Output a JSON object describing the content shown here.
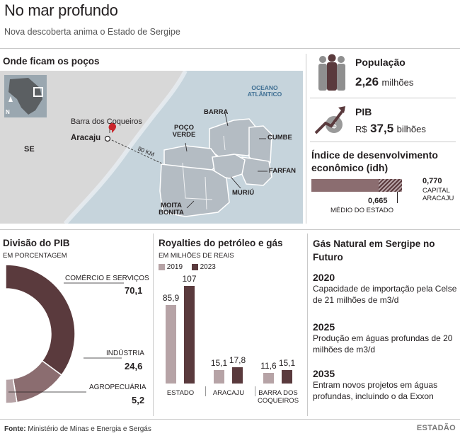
{
  "header": {
    "title": "No mar profundo",
    "subtitle": "Nova descoberta anima o Estado de Sergipe"
  },
  "map": {
    "section_title": "Onde ficam os poços",
    "ocean_label": "OCEANO ATLÂNTICO",
    "state_label": "SE",
    "city_primary": "Aracaju",
    "city_secondary": "Barra dos Coqueiros",
    "distance_label": "80 KM",
    "compass_label": "N",
    "wells": [
      "BARRA",
      "CUMBE",
      "POÇO VERDE",
      "FARFAN",
      "MURIÚ",
      "MOITA BONITA"
    ]
  },
  "population": {
    "label": "População",
    "value": "2,26",
    "unit": "milhões"
  },
  "gdp": {
    "label": "PIB",
    "prefix": "R$",
    "value": "37,5",
    "unit": "bilhões"
  },
  "idh": {
    "title": "Índice de desenvolvimento econômico (idh)",
    "state_value": "0,665",
    "state_label": "MÉDIO DO ESTADO",
    "capital_value": "0,770",
    "capital_label": "CAPITAL ARACAJU",
    "state_num": 0.665,
    "capital_num": 0.77
  },
  "pib_division": {
    "title": "Divisão do PIB",
    "unit_label": "EM PORCENTAGEM"
  },
  "royalties": {
    "title": "Royalties do petróleo e gás",
    "unit_label": "EM MILHÕES DE REAIS"
  },
  "future": {
    "title": "Gás Natural em Sergipe no Futuro",
    "items": [
      {
        "year": "2020",
        "text": "Capacidade de importação pela Celse de 21 milhões de m3/d"
      },
      {
        "year": "2025",
        "text": "Produção em águas profundas de 20 milhões de m3/d"
      },
      {
        "year": "2035",
        "text": "Entram novos projetos em águas profundas, incluindo o da Exxon"
      }
    ]
  },
  "footer": {
    "source_label": "Fonte:",
    "source_text": "Ministério de Minas e Energia e Sergás",
    "brand": "ESTADÃO"
  },
  "colors": {
    "dark": "#5a3a3d",
    "mid": "#8b6d70",
    "light": "#b6a3a6",
    "map_land": "#d8d8d8",
    "map_sea": "#c6d4dc",
    "well_fill": "#b4bcc3",
    "red_pin": "#c9262c"
  },
  "chart_data": [
    {
      "type": "pie",
      "title": "Divisão do PIB",
      "subtitle": "EM PORCENTAGEM",
      "categories": [
        "COMÉRCIO E SERVIÇOS",
        "INDÚSTRIA",
        "AGROPECUÁRIA"
      ],
      "values": [
        70.1,
        24.6,
        5.2
      ],
      "value_labels": [
        "70,1",
        "24,6",
        "5,2"
      ],
      "colors": [
        "#5a3a3d",
        "#8b6d70",
        "#b6a3a6"
      ]
    },
    {
      "type": "bar",
      "title": "Royalties do petróleo e gás",
      "subtitle": "EM MILHÕES DE REAIS",
      "categories": [
        "ESTADO",
        "ARACAJU",
        "BARRA DOS COQUEIROS"
      ],
      "series": [
        {
          "name": "2019",
          "values": [
            85.9,
            15.1,
            11.6
          ],
          "labels": [
            "85,9",
            "15,1",
            "11,6"
          ],
          "color": "#b6a3a6"
        },
        {
          "name": "2023",
          "values": [
            107,
            17.8,
            15.1
          ],
          "labels": [
            "107",
            "17,8",
            "15,1"
          ],
          "color": "#5a3a3d"
        }
      ],
      "ylim": [
        0,
        110
      ]
    }
  ]
}
